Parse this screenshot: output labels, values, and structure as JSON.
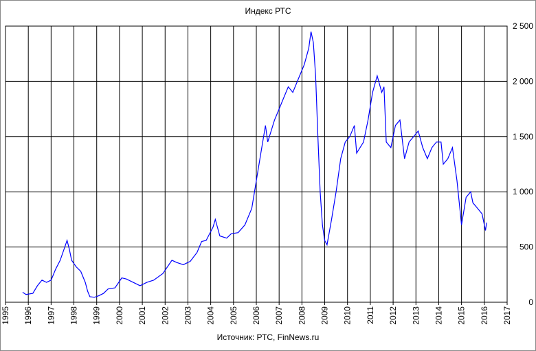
{
  "chart_data": {
    "type": "line",
    "title": "Индекс РТС",
    "source": "Источник: РТС, FinNews.ru",
    "x": [
      1995.75,
      1995.9,
      1996.2,
      1996.4,
      1996.6,
      1996.8,
      1997.0,
      1997.2,
      1997.4,
      1997.6,
      1997.7,
      1997.8,
      1997.9,
      1998.1,
      1998.3,
      1998.5,
      1998.6,
      1998.7,
      1998.9,
      1999.1,
      1999.3,
      1999.5,
      1999.8,
      2000.1,
      2000.3,
      2000.6,
      2000.9,
      2001.2,
      2001.5,
      2001.9,
      2002.3,
      2002.5,
      2002.8,
      2003.1,
      2003.4,
      2003.6,
      2003.8,
      2004.1,
      2004.2,
      2004.4,
      2004.7,
      2004.9,
      2005.2,
      2005.5,
      2005.8,
      2006.0,
      2006.2,
      2006.4,
      2006.5,
      2006.8,
      2007.0,
      2007.2,
      2007.4,
      2007.6,
      2007.9,
      2008.1,
      2008.3,
      2008.4,
      2008.5,
      2008.6,
      2008.7,
      2008.8,
      2008.9,
      2009.0,
      2009.1,
      2009.3,
      2009.5,
      2009.7,
      2009.9,
      2010.1,
      2010.3,
      2010.4,
      2010.7,
      2010.9,
      2011.1,
      2011.3,
      2011.5,
      2011.6,
      2011.7,
      2011.9,
      2012.1,
      2012.3,
      2012.5,
      2012.7,
      2012.9,
      2013.1,
      2013.3,
      2013.5,
      2013.7,
      2013.9,
      2014.1,
      2014.2,
      2014.4,
      2014.6,
      2014.8,
      2014.95,
      2015.0,
      2015.2,
      2015.4,
      2015.5,
      2015.7,
      2015.9,
      2016.05,
      2016.1
    ],
    "series": [
      {
        "name": "РТС",
        "color": "#0000ff",
        "values": [
          90,
          70,
          80,
          150,
          200,
          180,
          200,
          300,
          380,
          500,
          560,
          480,
          380,
          320,
          280,
          180,
          100,
          50,
          45,
          60,
          80,
          120,
          130,
          220,
          210,
          180,
          150,
          180,
          200,
          260,
          380,
          360,
          340,
          370,
          450,
          550,
          560,
          680,
          750,
          600,
          580,
          620,
          630,
          700,
          850,
          1100,
          1350,
          1600,
          1450,
          1650,
          1750,
          1850,
          1950,
          1900,
          2050,
          2150,
          2300,
          2450,
          2350,
          2050,
          1500,
          1000,
          700,
          560,
          520,
          750,
          1000,
          1300,
          1450,
          1500,
          1600,
          1350,
          1450,
          1650,
          1900,
          2050,
          1900,
          1950,
          1450,
          1400,
          1600,
          1650,
          1300,
          1450,
          1500,
          1550,
          1400,
          1300,
          1400,
          1450,
          1450,
          1250,
          1300,
          1400,
          1100,
          800,
          700,
          950,
          1000,
          900,
          850,
          800,
          650,
          720
        ]
      }
    ],
    "xlim": [
      1995,
      2017
    ],
    "xticks": [
      1995,
      1996,
      1997,
      1998,
      1999,
      2000,
      2001,
      2002,
      2003,
      2004,
      2005,
      2006,
      2007,
      2008,
      2009,
      2010,
      2011,
      2012,
      2013,
      2014,
      2015,
      2016,
      2017
    ],
    "ylim": [
      0,
      2500
    ],
    "yticks": [
      0,
      500,
      {
        "value": 1000,
        "label": "1 000"
      },
      {
        "value": 1500,
        "label": "1 500"
      },
      {
        "value": 2000,
        "label": "2 000"
      },
      {
        "value": 2500,
        "label": "2 500"
      }
    ],
    "grid": true
  }
}
